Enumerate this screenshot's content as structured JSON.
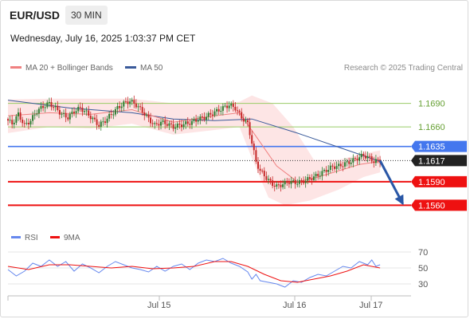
{
  "header": {
    "symbol": "EUR/USD",
    "timeframe": "30 MIN",
    "datetime": "Wednesday, July 16, 2025 1:03:37 PM CET"
  },
  "legend": {
    "ma20_label": "MA 20 + Bollinger Bands",
    "ma50_label": "MA 50",
    "copyright": "Research © 2025 Trading Central",
    "rsi_label": "RSI",
    "rsi_ma_label": "9MA"
  },
  "colors": {
    "ma20": "#f08080",
    "ma50": "#3a5a9a",
    "bollinger_fill": "#fde0e0",
    "up_candle": "#2e7d32",
    "down_candle": "#c62828",
    "support": "#ee1111",
    "pivot": "#4477ee",
    "resistance": "#99cc66",
    "current": "#222222",
    "forecast_arrow": "#2a57a6",
    "rsi": "#6688ee",
    "rsi_ma": "#ee1111"
  },
  "chart_data": [
    {
      "type": "candlestick",
      "instrument": "EUR/USD",
      "interval": "30 MIN",
      "ylim": [
        1.1535,
        1.1715
      ],
      "x_tick_labels": [
        "Jul 15",
        "Jul 16",
        "Jul 17"
      ],
      "current_price": 1.1617,
      "levels": [
        {
          "value": 1.169,
          "label": "1.1690",
          "kind": "resistance"
        },
        {
          "value": 1.166,
          "label": "1.1660",
          "kind": "resistance"
        },
        {
          "value": 1.1635,
          "label": "1.1635",
          "kind": "pivot"
        },
        {
          "value": 1.1617,
          "label": "1.1617",
          "kind": "current"
        },
        {
          "value": 1.159,
          "label": "1.1590",
          "kind": "support"
        },
        {
          "value": 1.156,
          "label": "1.1560",
          "kind": "support"
        }
      ],
      "close_path": [
        [
          0,
          1.167
        ],
        [
          3,
          1.1664
        ],
        [
          6,
          1.1676
        ],
        [
          9,
          1.1662
        ],
        [
          12,
          1.1668
        ],
        [
          15,
          1.168
        ],
        [
          18,
          1.1686
        ],
        [
          21,
          1.169
        ],
        [
          24,
          1.1684
        ],
        [
          27,
          1.1676
        ],
        [
          30,
          1.1672
        ],
        [
          33,
          1.168
        ],
        [
          36,
          1.1684
        ],
        [
          39,
          1.1678
        ],
        [
          42,
          1.167
        ],
        [
          45,
          1.1662
        ],
        [
          48,
          1.1668
        ],
        [
          51,
          1.1676
        ],
        [
          54,
          1.1684
        ],
        [
          57,
          1.169
        ],
        [
          60,
          1.1693
        ],
        [
          63,
          1.1688
        ],
        [
          66,
          1.168
        ],
        [
          69,
          1.167
        ],
        [
          72,
          1.1662
        ],
        [
          75,
          1.1666
        ],
        [
          78,
          1.1664
        ],
        [
          81,
          1.166
        ],
        [
          84,
          1.1662
        ],
        [
          87,
          1.1664
        ],
        [
          90,
          1.1666
        ],
        [
          93,
          1.167
        ],
        [
          96,
          1.1672
        ],
        [
          99,
          1.1676
        ],
        [
          102,
          1.168
        ],
        [
          105,
          1.1684
        ],
        [
          108,
          1.1688
        ],
        [
          111,
          1.1684
        ],
        [
          114,
          1.1672
        ],
        [
          117,
          1.1664
        ],
        [
          119,
          1.164
        ],
        [
          121,
          1.1615
        ],
        [
          123,
          1.1604
        ],
        [
          125,
          1.1598
        ],
        [
          127,
          1.1592
        ],
        [
          129,
          1.1587
        ],
        [
          131,
          1.1584
        ],
        [
          134,
          1.1587
        ],
        [
          137,
          1.159
        ],
        [
          140,
          1.1589
        ],
        [
          143,
          1.159
        ],
        [
          146,
          1.1593
        ],
        [
          149,
          1.1596
        ],
        [
          152,
          1.16
        ],
        [
          155,
          1.1605
        ],
        [
          158,
          1.1609
        ],
        [
          161,
          1.161
        ],
        [
          164,
          1.1613
        ],
        [
          167,
          1.1616
        ],
        [
          170,
          1.162
        ],
        [
          173,
          1.1624
        ],
        [
          176,
          1.162
        ],
        [
          178,
          1.1616
        ],
        [
          180,
          1.1617
        ]
      ],
      "ma20_path": [
        [
          0,
          1.1674
        ],
        [
          20,
          1.1678
        ],
        [
          40,
          1.1676
        ],
        [
          60,
          1.1682
        ],
        [
          80,
          1.1666
        ],
        [
          100,
          1.1674
        ],
        [
          112,
          1.1678
        ],
        [
          120,
          1.1648
        ],
        [
          130,
          1.161
        ],
        [
          140,
          1.159
        ],
        [
          150,
          1.1596
        ],
        [
          160,
          1.1604
        ],
        [
          170,
          1.1612
        ],
        [
          180,
          1.1616
        ]
      ],
      "ma50_path": [
        [
          0,
          1.1694
        ],
        [
          30,
          1.1684
        ],
        [
          60,
          1.1678
        ],
        [
          80,
          1.167
        ],
        [
          100,
          1.1668
        ],
        [
          118,
          1.167
        ],
        [
          140,
          1.1652
        ],
        [
          160,
          1.1634
        ],
        [
          180,
          1.1616
        ]
      ],
      "bollinger_upper": [
        [
          0,
          1.1695
        ],
        [
          20,
          1.1696
        ],
        [
          40,
          1.1696
        ],
        [
          60,
          1.1696
        ],
        [
          80,
          1.169
        ],
        [
          100,
          1.169
        ],
        [
          112,
          1.1692
        ],
        [
          118,
          1.17
        ],
        [
          128,
          1.169
        ],
        [
          138,
          1.166
        ],
        [
          148,
          1.1618
        ],
        [
          160,
          1.1618
        ],
        [
          172,
          1.1626
        ],
        [
          180,
          1.163
        ]
      ],
      "bollinger_lower": [
        [
          0,
          1.1652
        ],
        [
          20,
          1.166
        ],
        [
          40,
          1.1658
        ],
        [
          60,
          1.1664
        ],
        [
          80,
          1.165
        ],
        [
          100,
          1.1656
        ],
        [
          112,
          1.166
        ],
        [
          118,
          1.162
        ],
        [
          126,
          1.157
        ],
        [
          134,
          1.156
        ],
        [
          146,
          1.1566
        ],
        [
          160,
          1.158
        ],
        [
          172,
          1.1596
        ],
        [
          180,
          1.1602
        ]
      ],
      "forecast_arrow": {
        "from": [
          180,
          1.1617
        ],
        "to": [
          191,
          1.1562
        ]
      }
    },
    {
      "type": "line",
      "name": "RSI",
      "ylim": [
        20,
        80
      ],
      "y_ticks": [
        70,
        50,
        30
      ],
      "rsi": [
        [
          0,
          48
        ],
        [
          4,
          40
        ],
        [
          8,
          46
        ],
        [
          12,
          56
        ],
        [
          16,
          52
        ],
        [
          20,
          60
        ],
        [
          24,
          52
        ],
        [
          28,
          58
        ],
        [
          32,
          46
        ],
        [
          36,
          55
        ],
        [
          40,
          50
        ],
        [
          44,
          44
        ],
        [
          48,
          52
        ],
        [
          52,
          58
        ],
        [
          56,
          54
        ],
        [
          60,
          50
        ],
        [
          64,
          48
        ],
        [
          68,
          45
        ],
        [
          72,
          52
        ],
        [
          76,
          46
        ],
        [
          80,
          52
        ],
        [
          84,
          55
        ],
        [
          88,
          48
        ],
        [
          92,
          56
        ],
        [
          96,
          60
        ],
        [
          100,
          58
        ],
        [
          104,
          62
        ],
        [
          108,
          56
        ],
        [
          112,
          52
        ],
        [
          116,
          45
        ],
        [
          118,
          36
        ],
        [
          120,
          42
        ],
        [
          122,
          34
        ],
        [
          126,
          32
        ],
        [
          130,
          30
        ],
        [
          134,
          26
        ],
        [
          138,
          34
        ],
        [
          142,
          32
        ],
        [
          146,
          38
        ],
        [
          150,
          42
        ],
        [
          154,
          40
        ],
        [
          158,
          46
        ],
        [
          162,
          52
        ],
        [
          166,
          50
        ],
        [
          170,
          58
        ],
        [
          174,
          54
        ],
        [
          176,
          60
        ],
        [
          178,
          52
        ],
        [
          180,
          54
        ]
      ],
      "rsi_ma": [
        [
          0,
          52
        ],
        [
          10,
          48
        ],
        [
          20,
          54
        ],
        [
          30,
          54
        ],
        [
          40,
          52
        ],
        [
          50,
          50
        ],
        [
          60,
          52
        ],
        [
          70,
          49
        ],
        [
          80,
          50
        ],
        [
          90,
          52
        ],
        [
          100,
          58
        ],
        [
          108,
          58
        ],
        [
          116,
          52
        ],
        [
          124,
          42
        ],
        [
          132,
          34
        ],
        [
          140,
          32
        ],
        [
          148,
          36
        ],
        [
          156,
          40
        ],
        [
          164,
          46
        ],
        [
          172,
          54
        ],
        [
          180,
          50
        ]
      ]
    }
  ]
}
